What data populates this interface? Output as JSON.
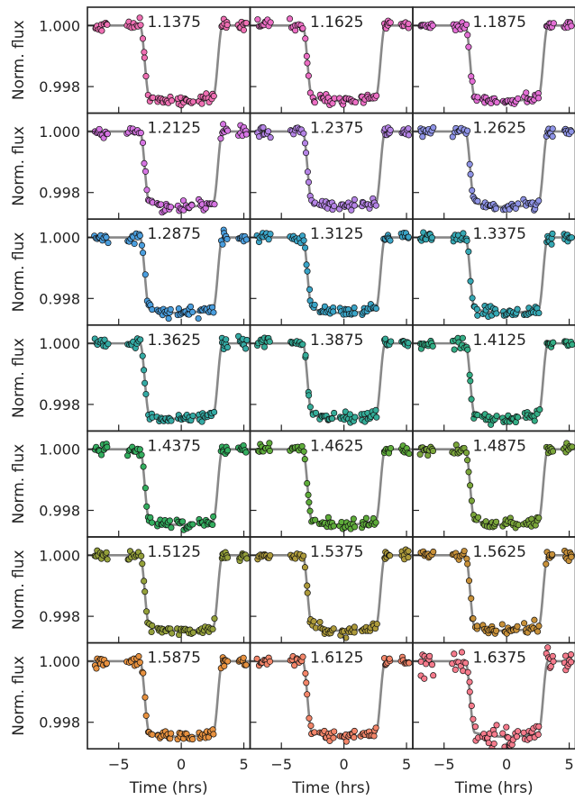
{
  "chart_data": {
    "type": "scatter",
    "layout": {
      "rows": 7,
      "cols": 3,
      "sharex": true,
      "sharey": true
    },
    "xlabel": "Time (hrs)",
    "ylabel": "Norm. flux",
    "xlim": [
      -7.5,
      5.5
    ],
    "ylim": [
      0.99713,
      1.0006
    ],
    "xticks": [
      -5,
      0,
      5
    ],
    "xtick_labels": [
      "−5",
      "0",
      "5"
    ],
    "yticks": [
      0.998,
      1.0
    ],
    "ytick_labels": [
      "0.998",
      "1.000"
    ],
    "model_color": "#888888",
    "transit": {
      "t1": -3.3,
      "t4": 3.3,
      "ingress_hrs": 0.75,
      "depth": 0.00225
    },
    "panels": [
      {
        "label": "1.1375",
        "color": "#ef6fb3"
      },
      {
        "label": "1.1625",
        "color": "#ec6ec4"
      },
      {
        "label": "1.1875",
        "color": "#e36fd5"
      },
      {
        "label": "1.2125",
        "color": "#d675e3"
      },
      {
        "label": "1.2375",
        "color": "#b584e6"
      },
      {
        "label": "1.2625",
        "color": "#8e93e6"
      },
      {
        "label": "1.2875",
        "color": "#4a9ede"
      },
      {
        "label": "1.3125",
        "color": "#3aa5c8"
      },
      {
        "label": "1.3375",
        "color": "#35a8b4"
      },
      {
        "label": "1.3625",
        "color": "#34aaa4"
      },
      {
        "label": "1.3875",
        "color": "#34ac98"
      },
      {
        "label": "1.4125",
        "color": "#33ad85"
      },
      {
        "label": "1.4375",
        "color": "#33ae5f"
      },
      {
        "label": "1.4625",
        "color": "#5eac3a"
      },
      {
        "label": "1.4875",
        "color": "#7aa53a"
      },
      {
        "label": "1.5125",
        "color": "#94a03a"
      },
      {
        "label": "1.5375",
        "color": "#ad9a3a"
      },
      {
        "label": "1.5625",
        "color": "#c79039"
      },
      {
        "label": "1.5875",
        "color": "#e7913f"
      },
      {
        "label": "1.6125",
        "color": "#f38569"
      },
      {
        "label": "1.6375",
        "color": "#f57b8c"
      }
    ]
  }
}
